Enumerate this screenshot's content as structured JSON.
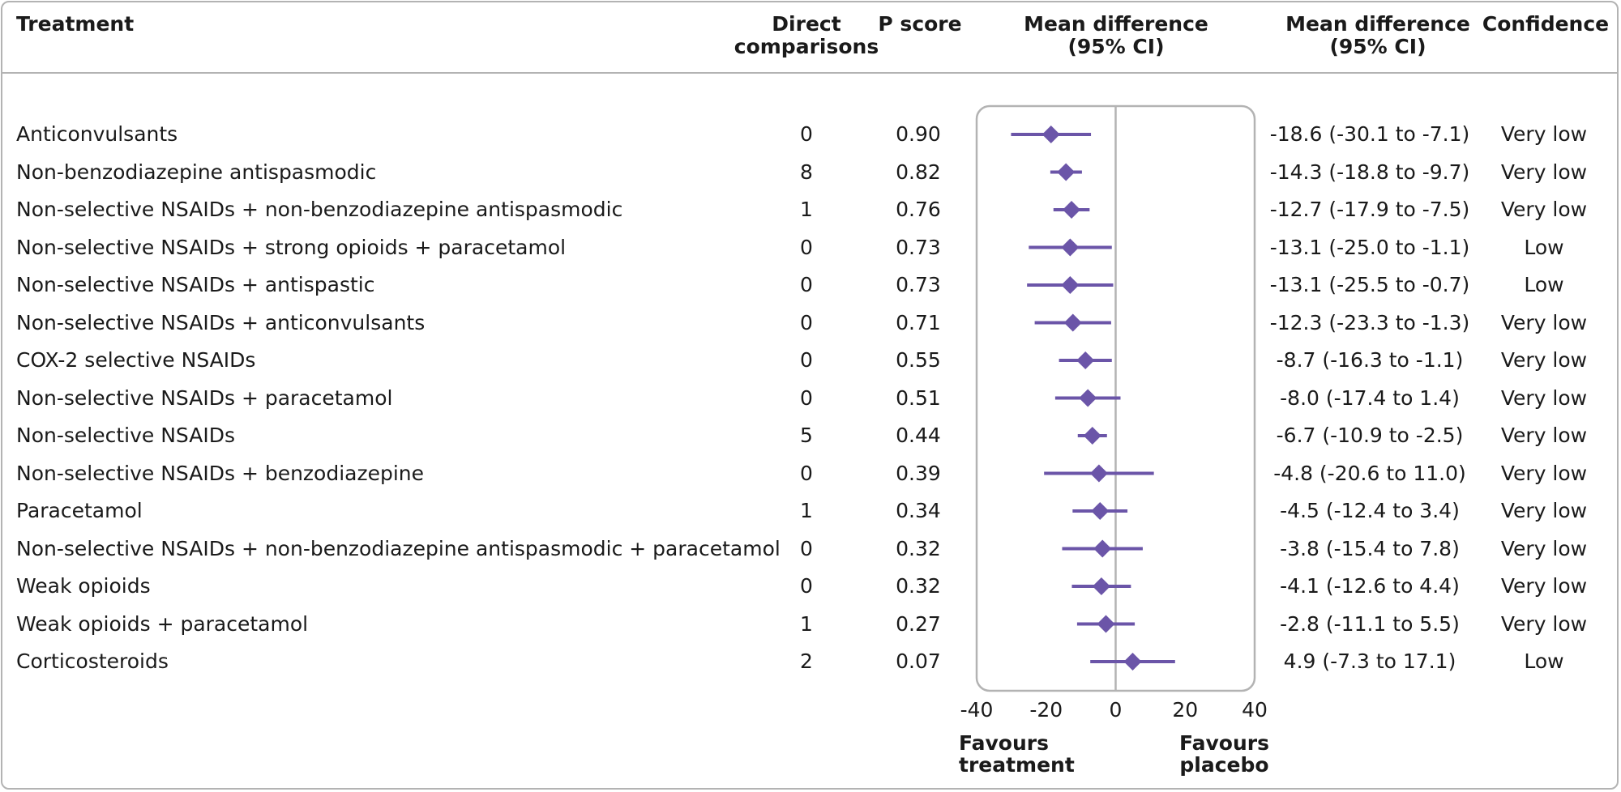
{
  "headers": {
    "treatment": "Treatment",
    "direct_comparisons": "Direct\ncomparisons",
    "p_score": "P score",
    "mean_difference_ci_plot": "Mean difference\n(95% CI)",
    "mean_difference_ci": "Mean difference\n(95% CI)",
    "confidence": "Confidence"
  },
  "favours": {
    "left": "Favours\ntreatment",
    "right": "Favours\nplacebo"
  },
  "colors": {
    "marker": "#6b55a8",
    "axis_line": "#b3b3b3",
    "text": "#1a1a1a"
  },
  "chart_data": {
    "type": "forest",
    "xlim": [
      -40,
      40
    ],
    "xticks": [
      "-40",
      "-20",
      "0",
      "20",
      "40"
    ],
    "reference_line": 0,
    "grid": false,
    "rows": [
      {
        "treatment": "Anticonvulsants",
        "direct_comparisons": "0",
        "p_score": "0.90",
        "mean": -18.6,
        "lower": -30.1,
        "upper": -7.1,
        "ci_text": "-18.6 (-30.1 to -7.1)",
        "confidence": "Very low"
      },
      {
        "treatment": "Non-benzodiazepine antispasmodic",
        "direct_comparisons": "8",
        "p_score": "0.82",
        "mean": -14.3,
        "lower": -18.8,
        "upper": -9.7,
        "ci_text": "-14.3 (-18.8 to -9.7)",
        "confidence": "Very low"
      },
      {
        "treatment": "Non-selective NSAIDs + non-benzodiazepine antispasmodic",
        "direct_comparisons": "1",
        "p_score": "0.76",
        "mean": -12.7,
        "lower": -17.9,
        "upper": -7.5,
        "ci_text": "-12.7 (-17.9 to -7.5)",
        "confidence": "Very low"
      },
      {
        "treatment": "Non-selective NSAIDs + strong opioids + paracetamol",
        "direct_comparisons": "0",
        "p_score": "0.73",
        "mean": -13.1,
        "lower": -25.0,
        "upper": -1.1,
        "ci_text": "-13.1 (-25.0 to -1.1)",
        "confidence": "Low"
      },
      {
        "treatment": "Non-selective NSAIDs + antispastic",
        "direct_comparisons": "0",
        "p_score": "0.73",
        "mean": -13.1,
        "lower": -25.5,
        "upper": -0.7,
        "ci_text": "-13.1 (-25.5 to -0.7)",
        "confidence": "Low"
      },
      {
        "treatment": "Non-selective NSAIDs + anticonvulsants",
        "direct_comparisons": "0",
        "p_score": "0.71",
        "mean": -12.3,
        "lower": -23.3,
        "upper": -1.3,
        "ci_text": "-12.3 (-23.3 to -1.3)",
        "confidence": "Very low"
      },
      {
        "treatment": "COX-2 selective NSAIDs",
        "direct_comparisons": "0",
        "p_score": "0.55",
        "mean": -8.7,
        "lower": -16.3,
        "upper": -1.1,
        "ci_text": "-8.7 (-16.3 to -1.1)",
        "confidence": "Very low"
      },
      {
        "treatment": "Non-selective NSAIDs + paracetamol",
        "direct_comparisons": "0",
        "p_score": "0.51",
        "mean": -8.0,
        "lower": -17.4,
        "upper": 1.4,
        "ci_text": "-8.0 (-17.4 to 1.4)",
        "confidence": "Very low"
      },
      {
        "treatment": "Non-selective NSAIDs",
        "direct_comparisons": "5",
        "p_score": "0.44",
        "mean": -6.7,
        "lower": -10.9,
        "upper": -2.5,
        "ci_text": "-6.7 (-10.9 to -2.5)",
        "confidence": "Very low"
      },
      {
        "treatment": "Non-selective NSAIDs + benzodiazepine",
        "direct_comparisons": "0",
        "p_score": "0.39",
        "mean": -4.8,
        "lower": -20.6,
        "upper": 11.0,
        "ci_text": "-4.8 (-20.6 to 11.0)",
        "confidence": "Very low"
      },
      {
        "treatment": "Paracetamol",
        "direct_comparisons": "1",
        "p_score": "0.34",
        "mean": -4.5,
        "lower": -12.4,
        "upper": 3.4,
        "ci_text": "-4.5 (-12.4 to 3.4)",
        "confidence": "Very low"
      },
      {
        "treatment": "Non-selective NSAIDs + non-benzodiazepine antispasmodic + paracetamol",
        "direct_comparisons": "0",
        "p_score": "0.32",
        "mean": -3.8,
        "lower": -15.4,
        "upper": 7.8,
        "ci_text": "-3.8 (-15.4 to 7.8)",
        "confidence": "Very low"
      },
      {
        "treatment": "Weak opioids",
        "direct_comparisons": "0",
        "p_score": "0.32",
        "mean": -4.1,
        "lower": -12.6,
        "upper": 4.4,
        "ci_text": "-4.1 (-12.6 to 4.4)",
        "confidence": "Very low"
      },
      {
        "treatment": "Weak opioids + paracetamol",
        "direct_comparisons": "1",
        "p_score": "0.27",
        "mean": -2.8,
        "lower": -11.1,
        "upper": 5.5,
        "ci_text": "-2.8 (-11.1 to 5.5)",
        "confidence": "Very low"
      },
      {
        "treatment": "Corticosteroids",
        "direct_comparisons": "2",
        "p_score": "0.07",
        "mean": 4.9,
        "lower": -7.3,
        "upper": 17.1,
        "ci_text": "4.9 (-7.3 to 17.1)",
        "confidence": "Low"
      }
    ]
  }
}
